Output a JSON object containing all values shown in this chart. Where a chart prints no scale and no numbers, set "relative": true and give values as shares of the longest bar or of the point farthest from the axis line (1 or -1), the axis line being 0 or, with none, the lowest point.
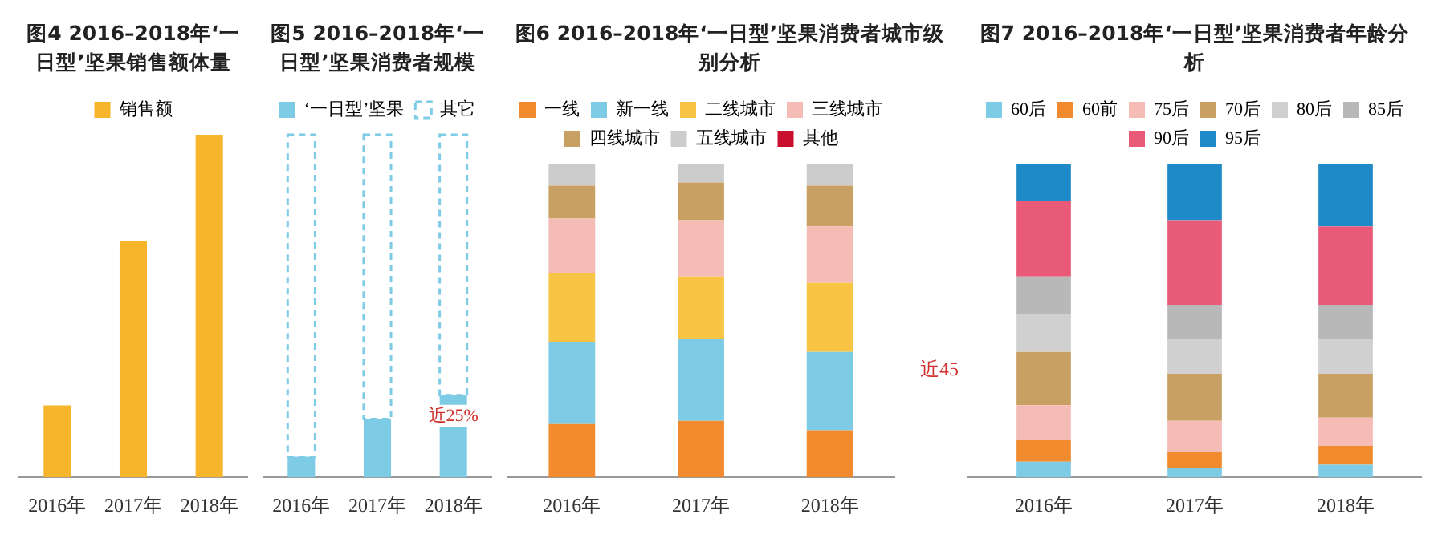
{
  "chart_data": [
    {
      "type": "bar",
      "title": "图4 2016–2018年‘一日型’坚果销售额体量",
      "relative": true,
      "legend": "top",
      "categories": [
        "2016年",
        "2017年",
        "2018年"
      ],
      "series": [
        {
          "name": "销售额",
          "color": "#f7b52c",
          "values": [
            0.21,
            0.69,
            1
          ]
        }
      ]
    },
    {
      "type": "bar",
      "title": "图5 2016–2018年‘一日型’坚果消费者规模",
      "relative": true,
      "stacked": true,
      "legend": "top",
      "categories": [
        "2016年",
        "2017年",
        "2018年"
      ],
      "series": [
        {
          "name": "‘一日型’坚果",
          "color": "#7ecbe6",
          "values": [
            0.06,
            0.17,
            0.24
          ]
        },
        {
          "name": "其它",
          "color": "#7ecbe6",
          "line_style": "dashed",
          "values": [
            0.94,
            0.83,
            0.76
          ]
        }
      ],
      "annotations": [
        {
          "text": "近25%",
          "x": "2018年",
          "y": 0.24
        }
      ]
    },
    {
      "type": "bar",
      "title": "图6 2016–2018年‘一日型’坚果消费者城市级别分析",
      "relative": true,
      "stacked": true,
      "legend": "top",
      "categories": [
        "2016年",
        "2017年",
        "2018年"
      ],
      "series": [
        {
          "name": "一线",
          "color": "#f28a2e",
          "values": [
            0.17,
            0.18,
            0.15
          ]
        },
        {
          "name": "新一线",
          "color": "#7ecbe6",
          "values": [
            0.26,
            0.26,
            0.25
          ]
        },
        {
          "name": "二线城市",
          "color": "#f7c443",
          "values": [
            0.22,
            0.2,
            0.22
          ]
        },
        {
          "name": "三线城市",
          "color": "#f4bcb5",
          "values": [
            0.175,
            0.18,
            0.18
          ]
        },
        {
          "name": "四线城市",
          "color": "#c9a063",
          "values": [
            0.105,
            0.12,
            0.13
          ]
        },
        {
          "name": "五线城市",
          "color": "#cccccc",
          "values": [
            0.07,
            0.06,
            0.07
          ]
        },
        {
          "name": "其他",
          "color": "#c8102e",
          "values": [
            0,
            0,
            0
          ]
        }
      ],
      "annotations": [
        "近45"
      ]
    },
    {
      "type": "bar",
      "title": "图7 2016–2018年‘一日型’坚果消费者年龄分析",
      "relative": true,
      "stacked": true,
      "legend": "top",
      "categories": [
        "2016年",
        "2017年",
        "2018年"
      ],
      "series": [
        {
          "name": "60后",
          "color": "#7ecbe6",
          "values": [
            0.05,
            0.03,
            0.04
          ]
        },
        {
          "name": "60前",
          "color": "#f28a2e",
          "values": [
            0.07,
            0.05,
            0.06
          ]
        },
        {
          "name": "75后",
          "color": "#f4bcb5",
          "values": [
            0.11,
            0.1,
            0.09
          ]
        },
        {
          "name": "70后",
          "color": "#c9a063",
          "values": [
            0.17,
            0.15,
            0.14
          ]
        },
        {
          "name": "80后",
          "color": "#d0d0d0",
          "values": [
            0.12,
            0.11,
            0.11
          ]
        },
        {
          "name": "85后",
          "color": "#b8b8b8",
          "values": [
            0.12,
            0.11,
            0.11
          ]
        },
        {
          "name": "90后",
          "color": "#e85a78",
          "values": [
            0.24,
            0.27,
            0.25
          ]
        },
        {
          "name": "95后",
          "color": "#1f8ac8",
          "values": [
            0.12,
            0.18,
            0.2
          ]
        }
      ]
    }
  ]
}
